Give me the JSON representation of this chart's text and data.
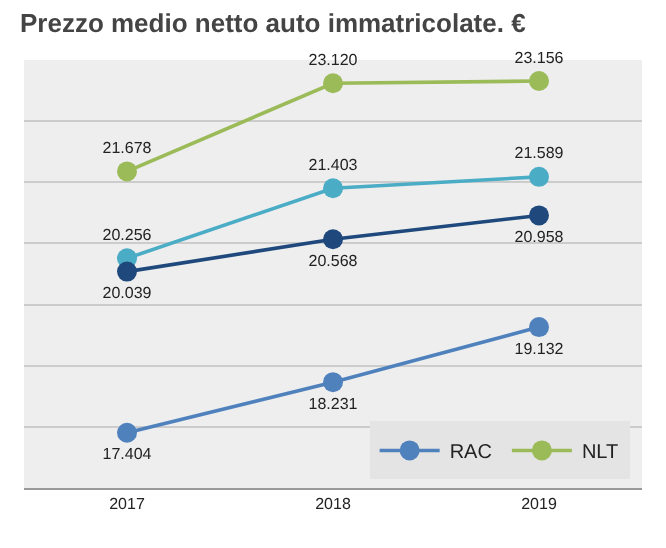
{
  "chart_data": {
    "type": "line",
    "title": "Prezzo medio netto auto immatricolate. €",
    "categories": [
      "2017",
      "2018",
      "2019"
    ],
    "series": [
      {
        "name": "RAC",
        "color": "#4f81bd",
        "values": [
          17404,
          18231,
          19132
        ],
        "value_labels": [
          "17.404",
          "18.231",
          "19.132"
        ]
      },
      {
        "name": "NLT",
        "color": "#9bbb59",
        "values": [
          21678,
          23120,
          23156
        ],
        "value_labels": [
          "21.678",
          "23.120",
          "23.156"
        ]
      },
      {
        "color": "#4bacc6",
        "values": [
          20256,
          21403,
          21589
        ],
        "value_labels": [
          "20.256",
          "21.403",
          "21.589"
        ]
      },
      {
        "color": "#1f497d",
        "values": [
          20039,
          20568,
          20958
        ],
        "value_labels": [
          "20.039",
          "20.568",
          "20.958"
        ]
      }
    ],
    "ylim": [
      16500,
      23500
    ],
    "yticks": [
      {
        "value": 17500,
        "label": null
      },
      {
        "value": 18500,
        "label": null
      },
      {
        "value": 19500,
        "label": null
      },
      {
        "value": 20500,
        "label": null
      },
      {
        "value": 21500,
        "label": null
      },
      {
        "value": 22500,
        "label": null
      },
      {
        "value": 23500,
        "label": null
      }
    ],
    "grid": "y",
    "legend": "bottom right",
    "marker": "circle",
    "line_style": "solid",
    "tick_labels": "x"
  }
}
